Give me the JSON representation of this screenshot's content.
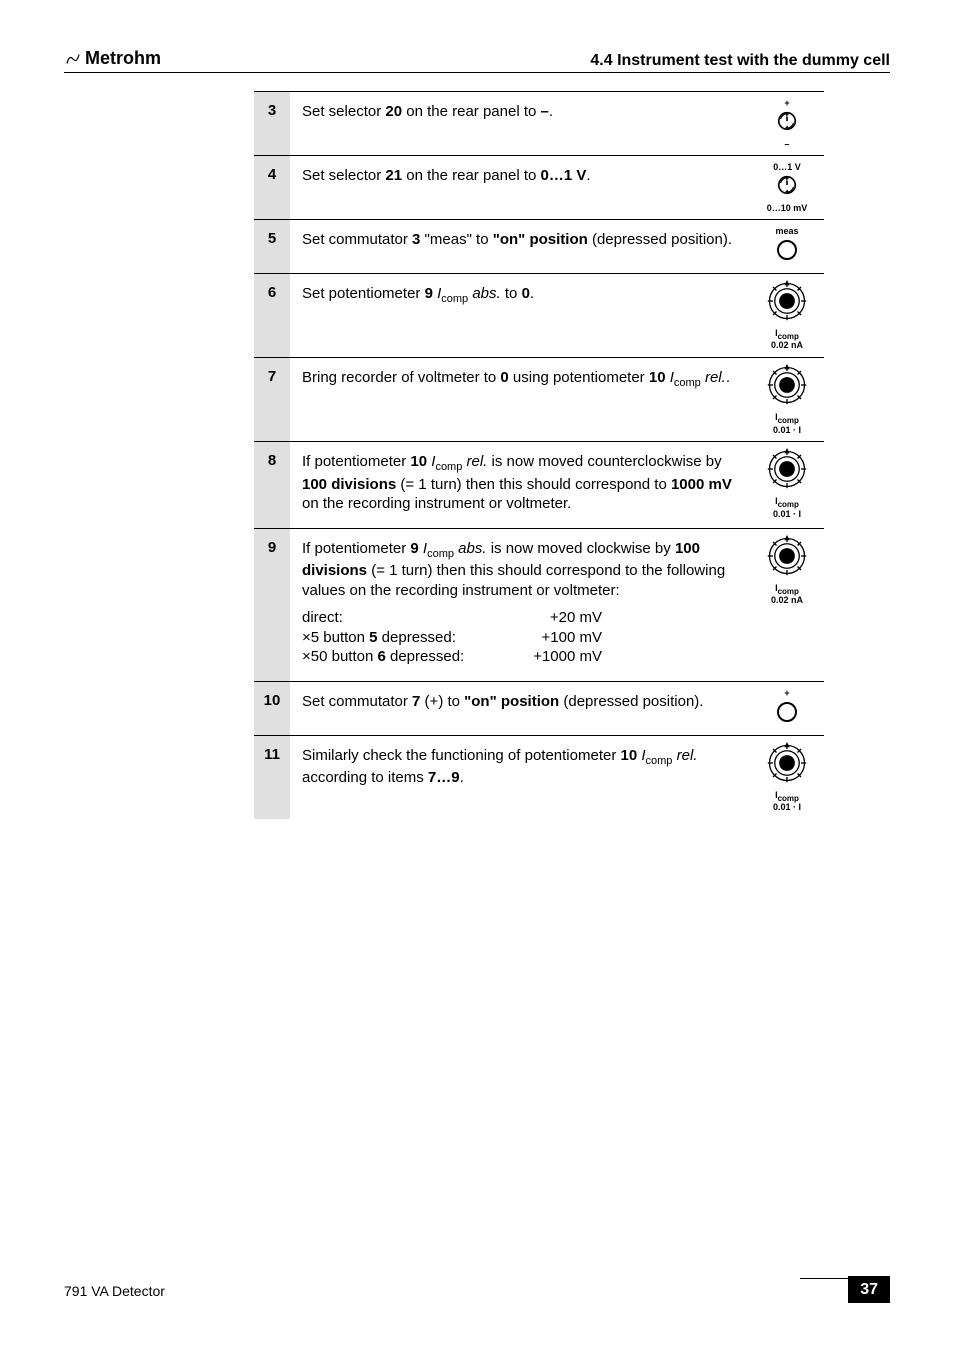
{
  "header": {
    "logo": "Metrohm",
    "section": "4.4  Instrument test with the dummy cell"
  },
  "rows": [
    {
      "num": "3",
      "text": "Set selector <b>20</b> on the rear panel to <b>–</b>.",
      "icon": "selector-plusminus",
      "label_top": "+",
      "label_bot": "–"
    },
    {
      "num": "4",
      "text": "Set selector <b>21</b> on the rear panel to <b>0…1 V</b>.",
      "icon": "selector-range",
      "label_top": "0…1 V",
      "label_bot": "0…10 mV"
    },
    {
      "num": "5",
      "text": "Set commutator <b>3</b> \"meas\" to <b>\"on\" position</b> (depressed position).",
      "icon": "button",
      "label_top": "meas"
    },
    {
      "num": "6",
      "text": "Set potentiometer <b>9</b> <i>I</i><sub>comp</sub> <i>abs.</i> to <b>0</b>.",
      "icon": "potentiometer",
      "label_bot_html": "I<sub>comp</sub><br>0.02 nA"
    },
    {
      "num": "7",
      "text": "Bring recorder of voltmeter to <b>0</b> using potentiometer <b>10</b> <i>I</i><sub>comp</sub> <i>rel.</i>.",
      "icon": "potentiometer",
      "label_bot_html": "I<sub>comp</sub><br>0.01 · I"
    },
    {
      "num": "8",
      "text": "If potentiometer <b>10</b> <i>I</i><sub>comp</sub> <i>rel.</i> is now moved counterclockwise by <b>100 divisions</b> (= 1 turn) then this should correspond to <b>1000 mV</b> on the recording instrument or voltmeter.",
      "icon": "potentiometer",
      "label_bot_html": "I<sub>comp</sub><br>0.01 · I"
    },
    {
      "num": "9",
      "text": "If potentiometer <b>9</b> <i>I</i><sub>comp</sub> <i>abs.</i> is now moved clockwise by <b>100 divisions</b> (= 1 turn) then this should correspond to the following values on the recording instrument or voltmeter:",
      "values": [
        {
          "left": "direct:",
          "right": "+20 mV"
        },
        {
          "left": "×5 button <b>5</b> depressed:",
          "right": "+100 mV"
        },
        {
          "left": "×50 button <b>6</b> depressed:",
          "right": "+1000 mV"
        }
      ],
      "icon": "potentiometer",
      "label_bot_html": "I<sub>comp</sub><br>0.02 nA"
    },
    {
      "num": "10",
      "text": "Set commutator <b>7</b> (+) to <b>\"on\" position</b> (depressed position).",
      "icon": "button",
      "label_top": "+"
    },
    {
      "num": "11",
      "text": "Similarly check the functioning of potentiometer <b>10</b> <i>I</i><sub>comp</sub> <i>rel.</i> according to items <b>7…9</b>.",
      "icon": "potentiometer",
      "label_bot_html": "I<sub>comp</sub><br>0.01 · I"
    }
  ],
  "footer": {
    "left": "791 VA Detector",
    "page": "37"
  },
  "icons": {
    "selector-plusminus": "knob-arrows",
    "selector-range": "knob-arrows",
    "button": "circle",
    "potentiometer": "dial"
  }
}
